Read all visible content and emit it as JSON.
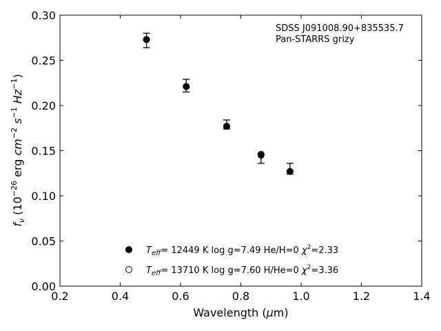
{
  "chart_data": {
    "type": "scatter",
    "xlabel": "Wavelength (μm)",
    "ylabel": "f_ν (10^−26 erg cm^−2 s^−1 Hz^−1)",
    "xlim": [
      0.2,
      1.4
    ],
    "ylim": [
      0.0,
      0.3
    ],
    "xticks": [
      "0.2",
      "0.4",
      "0.6",
      "0.8",
      "1.0",
      "1.2",
      "1.4"
    ],
    "yticks": [
      "0.00",
      "0.05",
      "0.10",
      "0.15",
      "0.20",
      "0.25",
      "0.30"
    ],
    "grid": false,
    "annotation": {
      "line1": "SDSS J091008.90+835535.7",
      "line2": "Pan-STARRS grizy"
    },
    "legend_position": "lower-center",
    "observed": {
      "x": [
        0.487,
        0.619,
        0.753,
        0.867,
        0.963
      ],
      "y": [
        0.272,
        0.222,
        0.179,
        0.141,
        0.13
      ],
      "err": [
        0.008,
        0.007,
        0.005,
        0.005,
        0.006
      ]
    },
    "series": [
      {
        "name": "T_eff= 12449 K  log g=7.49  He/H=0  χ²=2.33",
        "marker": "filled-circle",
        "x": [
          0.487,
          0.619,
          0.753,
          0.867,
          0.963
        ],
        "y": [
          0.273,
          0.221,
          0.177,
          0.145,
          0.127
        ]
      },
      {
        "name": "T_eff= 13710 K  log g=7.60  H/He=0  χ²=3.36",
        "marker": "open-circle",
        "x": [
          0.487,
          0.619,
          0.753,
          0.867,
          0.963
        ],
        "y": [
          0.273,
          0.221,
          0.177,
          0.146,
          0.127
        ]
      }
    ]
  }
}
